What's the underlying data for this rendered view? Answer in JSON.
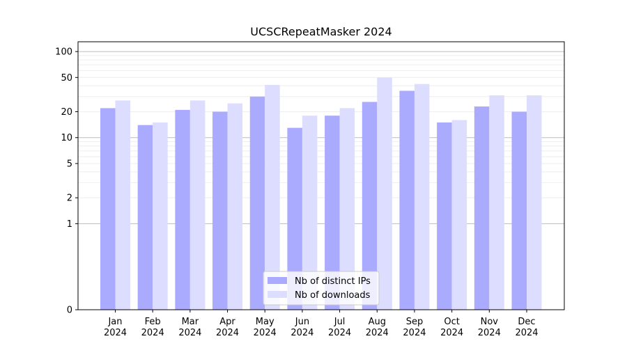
{
  "chart_data": {
    "type": "bar",
    "title": "UCSCRepeatMasker 2024",
    "xlabel": "",
    "ylabel": "",
    "y_scale": "symlog",
    "ylim": [
      0,
      130
    ],
    "yticks": [
      0,
      1,
      2,
      5,
      10,
      20,
      50,
      100
    ],
    "ytick_labels": [
      "0",
      "1",
      "2",
      "5",
      "10",
      "20",
      "50",
      "100"
    ],
    "categories": [
      [
        "Jan",
        "2024"
      ],
      [
        "Feb",
        "2024"
      ],
      [
        "Mar",
        "2024"
      ],
      [
        "Apr",
        "2024"
      ],
      [
        "May",
        "2024"
      ],
      [
        "Jun",
        "2024"
      ],
      [
        "Jul",
        "2024"
      ],
      [
        "Aug",
        "2024"
      ],
      [
        "Sep",
        "2024"
      ],
      [
        "Oct",
        "2024"
      ],
      [
        "Nov",
        "2024"
      ],
      [
        "Dec",
        "2024"
      ]
    ],
    "series": [
      {
        "name": "Nb of distinct IPs",
        "color": "#aaaaff",
        "values": [
          22,
          14,
          21,
          20,
          30,
          13,
          18,
          26,
          35,
          15,
          23,
          20
        ]
      },
      {
        "name": "Nb of downloads",
        "color": "#ddddff",
        "values": [
          27,
          15,
          27,
          25,
          41,
          18,
          22,
          50,
          42,
          16,
          31,
          31
        ]
      }
    ],
    "grid": true,
    "legend_position": "bottom-center"
  }
}
